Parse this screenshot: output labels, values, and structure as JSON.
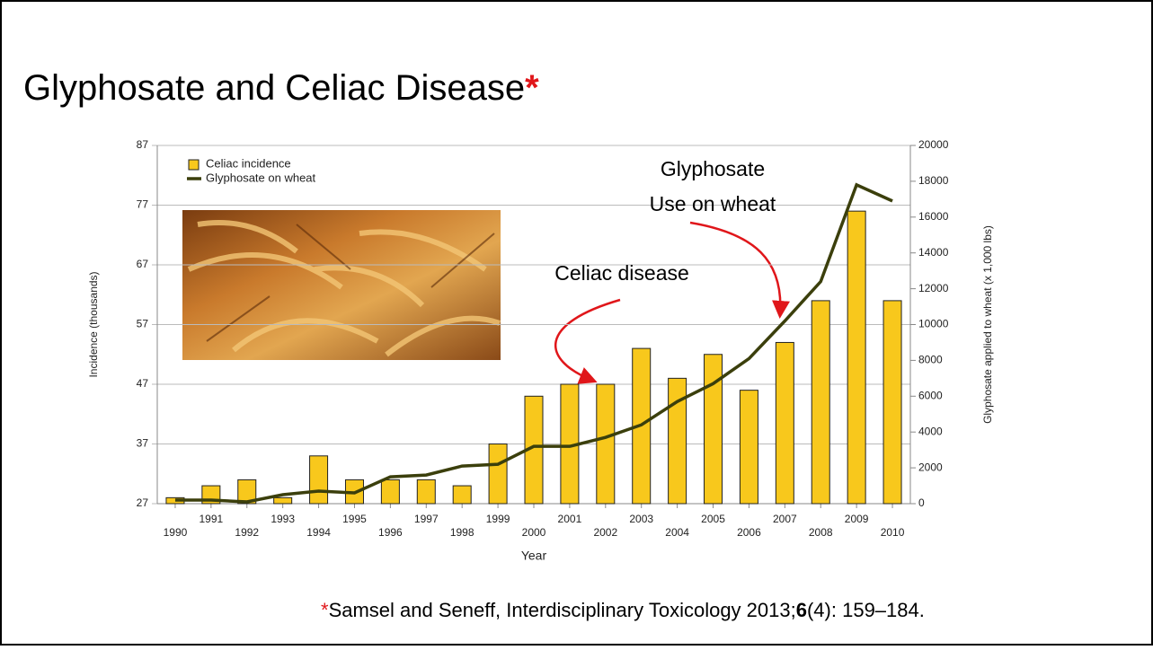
{
  "title": "Glyphosate and Celiac Disease",
  "title_marker": "*",
  "footnote": {
    "marker": "*",
    "text_before": "Samsel and Seneff, Interdisciplinary Toxicology 2013;",
    "bold": "6",
    "text_after": "(4): 159–184."
  },
  "chart_data": {
    "type": "bar",
    "categories": [
      "1990",
      "1991",
      "1992",
      "1993",
      "1994",
      "1995",
      "1996",
      "1997",
      "1998",
      "1999",
      "2000",
      "2001",
      "2002",
      "2003",
      "2004",
      "2005",
      "2006",
      "2007",
      "2008",
      "2009",
      "2010"
    ],
    "series": [
      {
        "name": "Celiac incidence",
        "color": "#f8c81c",
        "values": [
          28,
          30,
          31,
          28,
          35,
          31,
          31,
          31,
          30,
          37,
          45,
          47,
          47,
          53,
          48,
          52,
          46,
          54,
          61,
          76,
          61
        ]
      },
      {
        "name": "Glyphosate on wheat",
        "type": "line",
        "axis": "y2",
        "color": "#3b3f0c",
        "values": [
          200,
          200,
          100,
          500,
          700,
          600,
          1500,
          1600,
          2100,
          2200,
          3200,
          3200,
          3700,
          4400,
          5700,
          6700,
          8100,
          10200,
          12400,
          17800,
          16900
        ]
      }
    ],
    "ylim": [
      27,
      87
    ],
    "yticks": [
      27,
      37,
      47,
      57,
      67,
      77,
      87
    ],
    "y2lim": [
      0,
      20000
    ],
    "y2ticks": [
      0,
      2000,
      4000,
      6000,
      8000,
      10000,
      12000,
      14000,
      16000,
      18000,
      20000
    ],
    "xlabel": "Year",
    "ylabel": "Incidence (thousands)",
    "y2label": "Glyphosate applied to wheat (x 1,000 lbs)",
    "grid": true,
    "legend": "upper left",
    "annotations": [
      "Glyphosate",
      "Use on wheat",
      "Celiac disease"
    ]
  }
}
